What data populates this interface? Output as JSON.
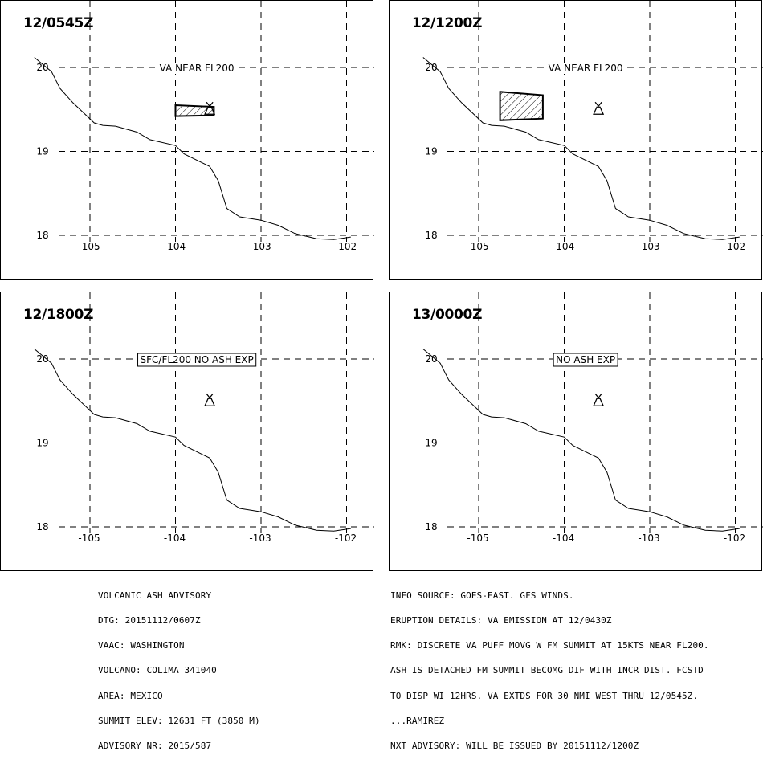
{
  "panels": [
    {
      "time": "12/0545Z",
      "annotation": "VA NEAR FL200",
      "annotation_boxed": false,
      "ash_polygon": [
        [
          -104.0,
          19.55
        ],
        [
          -103.55,
          19.53
        ],
        [
          -103.55,
          19.43
        ],
        [
          -104.0,
          19.42
        ]
      ]
    },
    {
      "time": "12/1200Z",
      "annotation": "VA NEAR FL200",
      "annotation_boxed": false,
      "ash_polygon": [
        [
          -104.75,
          19.71
        ],
        [
          -104.25,
          19.67
        ],
        [
          -104.25,
          19.39
        ],
        [
          -104.75,
          19.37
        ]
      ]
    },
    {
      "time": "12/1800Z",
      "annotation": "SFC/FL200 NO ASH EXP",
      "annotation_boxed": true,
      "ash_polygon": null
    },
    {
      "time": "13/0000Z",
      "annotation": "NO ASH EXP",
      "annotation_boxed": true,
      "ash_polygon": null
    }
  ],
  "map": {
    "lon_ticks": [
      "-105",
      "-104",
      "-103",
      "-102"
    ],
    "lat_ticks": [
      "20",
      "19",
      "18"
    ],
    "volcano": {
      "name": "volcano-icon",
      "lon": -103.6,
      "lat": 19.5
    },
    "coastline": [
      [
        -105.65,
        20.12
      ],
      [
        -105.45,
        19.95
      ],
      [
        -105.35,
        19.75
      ],
      [
        -105.2,
        19.58
      ],
      [
        -104.95,
        19.34
      ],
      [
        -104.85,
        19.31
      ],
      [
        -104.7,
        19.3
      ],
      [
        -104.45,
        19.23
      ],
      [
        -104.3,
        19.14
      ],
      [
        -104.0,
        19.07
      ],
      [
        -103.9,
        18.97
      ],
      [
        -103.7,
        18.87
      ],
      [
        -103.6,
        18.82
      ],
      [
        -103.5,
        18.65
      ],
      [
        -103.4,
        18.32
      ],
      [
        -103.25,
        18.22
      ],
      [
        -103.0,
        18.18
      ],
      [
        -102.8,
        18.12
      ],
      [
        -102.6,
        18.02
      ],
      [
        -102.35,
        17.96
      ],
      [
        -102.15,
        17.95
      ],
      [
        -101.95,
        17.98
      ]
    ]
  },
  "advisory_left": [
    "VOLCANIC ASH ADVISORY",
    "DTG: 20151112/0607Z",
    "VAAC: WASHINGTON",
    "VOLCANO: COLIMA 341040",
    "AREA: MEXICO",
    "SUMMIT ELEV: 12631 FT (3850 M)",
    "ADVISORY NR: 2015/587"
  ],
  "advisory_right": [
    "INFO SOURCE: GOES-EAST. GFS WINDS.",
    "ERUPTION DETAILS: VA EMISSION AT 12/0430Z",
    "RMK: DISCRETE VA PUFF MOVG W FM SUMMIT AT 15KTS NEAR FL200.",
    "ASH IS DETACHED FM SUMMIT BECOMG DIF WITH INCR DIST. FCSTD",
    "TO DISP WI 12HRS. VA EXTDS FOR 30 NMI WEST THRU 12/0545Z.",
    "...RAMIREZ",
    "NXT ADVISORY: WILL BE ISSUED BY 20151112/1200Z"
  ]
}
